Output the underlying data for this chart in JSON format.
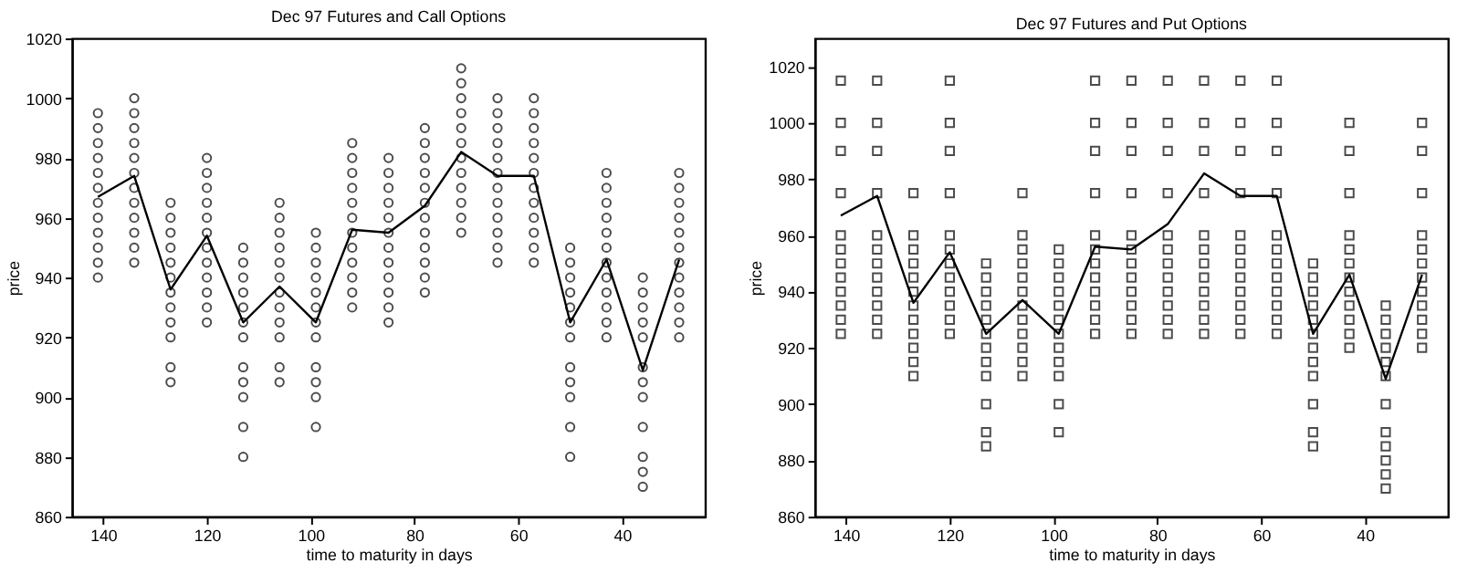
{
  "chart_data": [
    {
      "type": "scatter",
      "title": "Dec 97 Futures and Call Options",
      "xlabel": "time to maturity in days",
      "ylabel": "price",
      "xlim": [
        146,
        24
      ],
      "xticks": [
        140,
        120,
        100,
        80,
        60,
        40
      ],
      "ylim": [
        860,
        1020
      ],
      "yticks": [
        860,
        880,
        900,
        920,
        940,
        960,
        980,
        1000,
        1020
      ],
      "grid": false,
      "series": [
        {
          "type": "line",
          "color": "#000000",
          "marker": "none",
          "line_style": "solid",
          "x": [
            141,
            134,
            127,
            120,
            113,
            106,
            99,
            92,
            85,
            78,
            71,
            64,
            57,
            50,
            43,
            36,
            29
          ],
          "values": [
            967,
            974,
            936,
            954,
            925,
            937,
            925,
            956,
            955,
            964,
            982,
            974,
            974,
            925,
            946,
            909,
            946
          ]
        },
        {
          "color": "#000000",
          "marker": "circle",
          "x": [
            141,
            141,
            141,
            141,
            141,
            141,
            141,
            141,
            141,
            141,
            141,
            141,
            134,
            134,
            134,
            134,
            134,
            134,
            134,
            134,
            134,
            134,
            134,
            134,
            127,
            127,
            127,
            127,
            127,
            127,
            127,
            127,
            127,
            127,
            127,
            127,
            120,
            120,
            120,
            120,
            120,
            120,
            120,
            120,
            120,
            120,
            120,
            120,
            113,
            113,
            113,
            113,
            113,
            113,
            113,
            113,
            113,
            113,
            113,
            113,
            106,
            106,
            106,
            106,
            106,
            106,
            106,
            106,
            106,
            106,
            106,
            106,
            99,
            99,
            99,
            99,
            99,
            99,
            99,
            99,
            99,
            99,
            99,
            99,
            92,
            92,
            92,
            92,
            92,
            92,
            92,
            92,
            92,
            92,
            92,
            92,
            85,
            85,
            85,
            85,
            85,
            85,
            85,
            85,
            85,
            85,
            85,
            85,
            78,
            78,
            78,
            78,
            78,
            78,
            78,
            78,
            78,
            78,
            78,
            78,
            71,
            71,
            71,
            71,
            71,
            71,
            71,
            71,
            71,
            71,
            71,
            71,
            64,
            64,
            64,
            64,
            64,
            64,
            64,
            64,
            64,
            64,
            64,
            64,
            57,
            57,
            57,
            57,
            57,
            57,
            57,
            57,
            57,
            57,
            57,
            57,
            50,
            50,
            50,
            50,
            50,
            50,
            50,
            50,
            50,
            50,
            50,
            50,
            43,
            43,
            43,
            43,
            43,
            43,
            43,
            43,
            43,
            43,
            43,
            43,
            36,
            36,
            36,
            36,
            36,
            36,
            36,
            36,
            36,
            36,
            36,
            36,
            29,
            29,
            29,
            29,
            29,
            29,
            29,
            29,
            29,
            29,
            29,
            29
          ],
          "values": [
            940,
            945,
            950,
            955,
            960,
            965,
            970,
            975,
            980,
            985,
            990,
            995,
            945,
            950,
            955,
            960,
            965,
            970,
            975,
            980,
            985,
            990,
            995,
            1000,
            905,
            910,
            920,
            925,
            930,
            935,
            940,
            945,
            950,
            955,
            960,
            965,
            925,
            930,
            935,
            940,
            945,
            950,
            955,
            960,
            965,
            970,
            975,
            980,
            880,
            890,
            900,
            905,
            910,
            920,
            925,
            930,
            935,
            940,
            945,
            950,
            905,
            910,
            920,
            925,
            930,
            935,
            940,
            945,
            950,
            955,
            960,
            965,
            890,
            900,
            905,
            910,
            920,
            925,
            930,
            935,
            940,
            945,
            950,
            955,
            930,
            935,
            940,
            945,
            950,
            955,
            960,
            965,
            970,
            975,
            980,
            985,
            925,
            930,
            935,
            940,
            945,
            950,
            955,
            960,
            965,
            970,
            975,
            980,
            935,
            940,
            945,
            950,
            955,
            960,
            965,
            970,
            975,
            980,
            985,
            990,
            955,
            960,
            965,
            970,
            975,
            980,
            985,
            990,
            995,
            1000,
            1005,
            1010,
            945,
            950,
            955,
            960,
            965,
            970,
            975,
            980,
            985,
            990,
            995,
            1000,
            945,
            950,
            955,
            960,
            965,
            970,
            975,
            980,
            985,
            990,
            995,
            1000,
            880,
            890,
            900,
            905,
            910,
            920,
            925,
            930,
            935,
            940,
            945,
            950,
            920,
            925,
            930,
            935,
            940,
            945,
            950,
            955,
            960,
            965,
            970,
            975,
            870,
            875,
            880,
            890,
            900,
            905,
            910,
            920,
            925,
            930,
            935,
            940,
            920,
            925,
            930,
            935,
            940,
            945,
            950,
            955,
            960,
            965,
            970,
            975
          ]
        }
      ]
    },
    {
      "type": "scatter",
      "title": "Dec 97 Futures and Put Options",
      "xlabel": "time to maturity in days",
      "ylabel": "price",
      "xlim": [
        146,
        24
      ],
      "xticks": [
        140,
        120,
        100,
        80,
        60,
        40
      ],
      "ylim": [
        860,
        1030
      ],
      "yticks": [
        860,
        880,
        900,
        920,
        940,
        960,
        980,
        1000,
        1020
      ],
      "grid": false,
      "series": [
        {
          "type": "line",
          "color": "#000000",
          "marker": "none",
          "line_style": "solid",
          "x": [
            141,
            134,
            127,
            120,
            113,
            106,
            99,
            92,
            85,
            78,
            71,
            64,
            57,
            50,
            43,
            36,
            29
          ],
          "values": [
            967,
            974,
            936,
            954,
            925,
            937,
            925,
            956,
            955,
            964,
            982,
            974,
            974,
            925,
            946,
            909,
            946
          ]
        },
        {
          "color": "#000000",
          "marker": "square",
          "x": [
            141,
            141,
            141,
            141,
            141,
            141,
            141,
            141,
            141,
            141,
            141,
            141,
            134,
            134,
            134,
            134,
            134,
            134,
            134,
            134,
            134,
            134,
            134,
            134,
            127,
            127,
            127,
            127,
            127,
            127,
            127,
            127,
            127,
            127,
            127,
            127,
            120,
            120,
            120,
            120,
            120,
            120,
            120,
            120,
            120,
            120,
            120,
            120,
            113,
            113,
            113,
            113,
            113,
            113,
            113,
            113,
            113,
            113,
            113,
            113,
            106,
            106,
            106,
            106,
            106,
            106,
            106,
            106,
            106,
            106,
            106,
            106,
            99,
            99,
            99,
            99,
            99,
            99,
            99,
            99,
            99,
            99,
            99,
            99,
            92,
            92,
            92,
            92,
            92,
            92,
            92,
            92,
            92,
            92,
            92,
            92,
            85,
            85,
            85,
            85,
            85,
            85,
            85,
            85,
            85,
            85,
            85,
            85,
            78,
            78,
            78,
            78,
            78,
            78,
            78,
            78,
            78,
            78,
            78,
            78,
            71,
            71,
            71,
            71,
            71,
            71,
            71,
            71,
            71,
            71,
            71,
            71,
            64,
            64,
            64,
            64,
            64,
            64,
            64,
            64,
            64,
            64,
            64,
            64,
            57,
            57,
            57,
            57,
            57,
            57,
            57,
            57,
            57,
            57,
            57,
            57,
            50,
            50,
            50,
            50,
            50,
            50,
            50,
            50,
            50,
            50,
            50,
            50,
            43,
            43,
            43,
            43,
            43,
            43,
            43,
            43,
            43,
            43,
            43,
            43,
            36,
            36,
            36,
            36,
            36,
            36,
            36,
            36,
            36,
            36,
            36,
            36,
            29,
            29,
            29,
            29,
            29,
            29,
            29,
            29,
            29,
            29,
            29,
            29
          ],
          "values": [
            925,
            930,
            935,
            940,
            945,
            950,
            955,
            960,
            975,
            990,
            1000,
            1015,
            925,
            930,
            935,
            940,
            945,
            950,
            955,
            960,
            975,
            990,
            1000,
            1015,
            910,
            915,
            920,
            925,
            930,
            935,
            940,
            945,
            950,
            955,
            960,
            975,
            925,
            930,
            935,
            940,
            945,
            950,
            955,
            960,
            975,
            990,
            1000,
            1015,
            885,
            890,
            900,
            910,
            915,
            920,
            925,
            930,
            935,
            940,
            945,
            950,
            910,
            915,
            920,
            925,
            930,
            935,
            940,
            945,
            950,
            955,
            960,
            975,
            890,
            900,
            910,
            915,
            920,
            925,
            930,
            935,
            940,
            945,
            950,
            955,
            925,
            930,
            935,
            940,
            945,
            950,
            955,
            960,
            975,
            990,
            1000,
            1015,
            925,
            930,
            935,
            940,
            945,
            950,
            955,
            960,
            975,
            990,
            1000,
            1015,
            925,
            930,
            935,
            940,
            945,
            950,
            955,
            960,
            975,
            990,
            1000,
            1015,
            925,
            930,
            935,
            940,
            945,
            950,
            955,
            960,
            975,
            990,
            1000,
            1015,
            925,
            930,
            935,
            940,
            945,
            950,
            955,
            960,
            975,
            990,
            1000,
            1015,
            925,
            930,
            935,
            940,
            945,
            950,
            955,
            960,
            975,
            990,
            1000,
            1015,
            885,
            890,
            900,
            910,
            915,
            920,
            925,
            930,
            935,
            940,
            945,
            950,
            920,
            925,
            930,
            935,
            940,
            945,
            950,
            955,
            960,
            975,
            990,
            1000,
            870,
            875,
            880,
            885,
            890,
            900,
            910,
            915,
            920,
            925,
            930,
            935,
            920,
            925,
            930,
            935,
            940,
            945,
            950,
            955,
            960,
            975,
            990,
            1000
          ]
        }
      ]
    }
  ]
}
